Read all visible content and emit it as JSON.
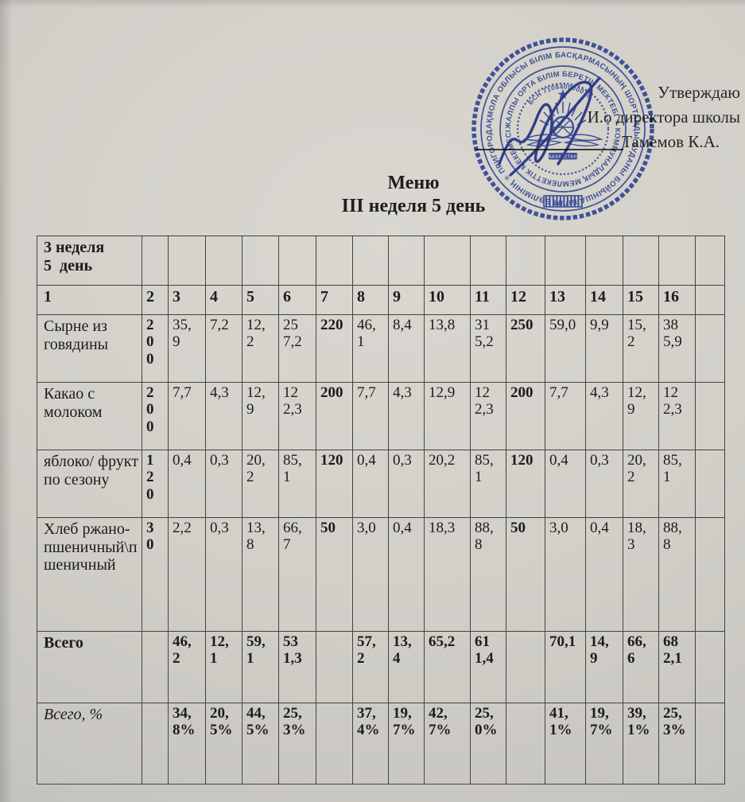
{
  "approval": {
    "line1": "Утверждаю",
    "line2": "И.о директора школы",
    "line3": "Тамемов К.А."
  },
  "title": {
    "line1": "Меню",
    "line2": "III неделя 5 день"
  },
  "stamp": {
    "ring_outer": "АҚМОЛА ОБЛЫСЫ БІЛІМ БАСҚАРМАСЫНЫҢ ШОРТАНДЫ АУДАНЫ БОЙЫНША БІЛІМ БӨЛІМІНІҢ ✳ ПРИГОРОДНЫЙ АУЫЛЫНЫҢ ✳",
    "ring_inner": "ЖАЛПЫ ОРТА БІЛІМ БЕРЕТІН МЕКТЕБІ ✳ КОММУНАЛДЫҚ МЕМЛЕКЕТТІК МЕКЕМЕСІ ✳",
    "bsn": "БСН 710840000078",
    "banner": "ҚАЗАҚСТАН"
  },
  "colors": {
    "stamp_blue": "#3e56b8",
    "signature_blue": "#2b3da3",
    "paper": "#d1cfc8",
    "ink": "#1d1d1b"
  },
  "table": {
    "corner_lines": [
      "3 неделя",
      "5  день"
    ],
    "column_numbers": [
      "1",
      "2",
      "3",
      "4",
      "5",
      "6",
      "7",
      "8",
      "9",
      "10",
      "11",
      "12",
      "13",
      "14",
      "15",
      "16",
      ""
    ],
    "bold_value_columns": [
      2,
      7,
      12
    ],
    "rows": [
      {
        "label": "Сырне из говядины",
        "cells": [
          "200",
          "35,9",
          "7,2",
          "12,2",
          "257,2",
          "220",
          "46,1",
          "8,4",
          "13,8",
          "315,2",
          "250",
          "59,0",
          "9,9",
          "15,2",
          "385,9",
          ""
        ]
      },
      {
        "label": "Какао с молоком",
        "cells": [
          "200",
          "7,7",
          "4,3",
          "12,9",
          "122,3",
          "200",
          "7,7",
          "4,3",
          "12,9",
          "122,3",
          "200",
          "7,7",
          "4,3",
          "12,9",
          "122,3",
          ""
        ]
      },
      {
        "label": "яблоко/ фрукт по сезону",
        "cells": [
          "120",
          "0,4",
          "0,3",
          "20,2",
          "85,1",
          "120",
          "0,4",
          "0,3",
          "20,2",
          "85,1",
          "120",
          "0,4",
          "0,3",
          "20,2",
          "85,1",
          ""
        ]
      },
      {
        "label": "Хлеб ржано-пшеничный\\пшеничный",
        "cells": [
          "30",
          "2,2",
          "0,3",
          "13,8",
          "66,7",
          "50",
          "3,0",
          "0,4",
          "18,3",
          "88,8",
          "50",
          "3,0",
          "0,4",
          "18,3",
          "88,8",
          ""
        ]
      },
      {
        "label": "Всего",
        "label_style": "bold",
        "all_bold": true,
        "cells": [
          "",
          "46,2",
          "12,1",
          "59,1",
          "531,3",
          "",
          "57,2",
          "13,4",
          "65,2",
          "611,4",
          "",
          "70,1",
          "14,9",
          "66,6",
          "682,1",
          ""
        ]
      },
      {
        "label": "Всего, %",
        "label_style": "italic",
        "all_bold": true,
        "cells": [
          "",
          "34,8%",
          "20,5%",
          "44,5%",
          "25,3%",
          "",
          "37,4%",
          "19,7%",
          "42,7%",
          "25,0%",
          "",
          "41,1%",
          "19,7%",
          "39,1%",
          "25,3%",
          ""
        ]
      }
    ]
  }
}
